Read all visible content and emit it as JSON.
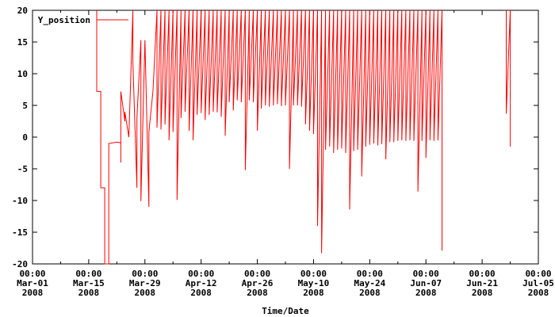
{
  "chart_data": {
    "type": "line",
    "title": "",
    "xlabel": "Time/Date",
    "ylabel": "",
    "x_axis": "date",
    "xlim": [
      "2008-03-01",
      "2008-07-05"
    ],
    "ylim": [
      -20,
      20
    ],
    "y_ticks": [
      -20,
      -15,
      -10,
      -5,
      0,
      5,
      10,
      15,
      20
    ],
    "x_ticks": [
      {
        "date": "2008-03-01",
        "lines": [
          "00:00",
          "Mar-01",
          "2008"
        ]
      },
      {
        "date": "2008-03-15",
        "lines": [
          "00:00",
          "Mar-15",
          "2008"
        ]
      },
      {
        "date": "2008-03-29",
        "lines": [
          "00:00",
          "Mar-29",
          "2008"
        ]
      },
      {
        "date": "2008-04-12",
        "lines": [
          "00:00",
          "Apr-12",
          "2008"
        ]
      },
      {
        "date": "2008-04-26",
        "lines": [
          "00:00",
          "Apr-26",
          "2008"
        ]
      },
      {
        "date": "2008-05-10",
        "lines": [
          "00:00",
          "May-10",
          "2008"
        ]
      },
      {
        "date": "2008-05-24",
        "lines": [
          "00:00",
          "May-24",
          "2008"
        ]
      },
      {
        "date": "2008-06-07",
        "lines": [
          "00:00",
          "Jun-07",
          "2008"
        ]
      },
      {
        "date": "2008-06-21",
        "lines": [
          "00:00",
          "Jun-21",
          "2008"
        ]
      },
      {
        "date": "2008-07-05",
        "lines": [
          "00:00",
          "Jul-05",
          "2008"
        ]
      }
    ],
    "grid": false,
    "legend_position": "top-left",
    "series": [
      {
        "name": "Y_position",
        "color": "#ff0000",
        "points": [
          [
            "2008-03-17",
            20
          ],
          [
            "2008-03-17",
            7.2
          ],
          [
            "2008-03-18",
            7.2
          ],
          [
            "2008-03-18",
            -8
          ],
          [
            "2008-03-19",
            -8
          ],
          [
            "2008-03-19",
            -20
          ],
          [
            "2008-03-20",
            -20
          ],
          [
            "2008-03-20",
            -1
          ],
          [
            "2008-03-22",
            -0.8
          ],
          [
            "2008-03-23",
            -0.9
          ],
          [
            "2008-03-23",
            -4
          ],
          [
            "2008-03-23",
            7.2
          ],
          [
            "2008-03-24",
            2.5
          ],
          [
            "2008-03-24",
            4
          ],
          [
            "2008-03-25",
            0
          ],
          [
            "2008-03-26",
            20
          ],
          [
            "2008-03-26",
            11.8
          ],
          [
            "2008-03-27",
            -8
          ],
          [
            "2008-03-27",
            3
          ],
          [
            "2008-03-28",
            15.3
          ],
          [
            "2008-03-28",
            -10.1
          ],
          [
            "2008-03-29",
            15.3
          ],
          [
            "2008-03-30",
            -11
          ],
          [
            "2008-03-30",
            0.8
          ],
          [
            "2008-03-31",
            7.2
          ],
          [
            "2008-04-01",
            20
          ],
          [
            "2008-04-01",
            1.5
          ],
          [
            "2008-04-02",
            20
          ],
          [
            "2008-04-02",
            1.2
          ],
          [
            "2008-04-03",
            20
          ],
          [
            "2008-04-03",
            2
          ],
          [
            "2008-04-04",
            20
          ],
          [
            "2008-04-04",
            -0.5
          ],
          [
            "2008-04-05",
            20
          ],
          [
            "2008-04-05",
            0.8
          ],
          [
            "2008-04-06",
            20
          ],
          [
            "2008-04-06",
            -9.9
          ],
          [
            "2008-04-07",
            20
          ],
          [
            "2008-04-07",
            3
          ],
          [
            "2008-04-08",
            20
          ],
          [
            "2008-04-08",
            4
          ],
          [
            "2008-04-09",
            20
          ],
          [
            "2008-04-09",
            1
          ],
          [
            "2008-04-10",
            20
          ],
          [
            "2008-04-10",
            -0.5
          ],
          [
            "2008-04-11",
            20
          ],
          [
            "2008-04-11",
            3.5
          ],
          [
            "2008-04-12",
            20
          ],
          [
            "2008-04-12",
            3.8
          ],
          [
            "2008-04-13",
            20
          ],
          [
            "2008-04-13",
            2.7
          ],
          [
            "2008-04-14",
            20
          ],
          [
            "2008-04-14",
            3.5
          ],
          [
            "2008-04-15",
            20
          ],
          [
            "2008-04-15",
            4
          ],
          [
            "2008-04-16",
            20
          ],
          [
            "2008-04-16",
            3.9
          ],
          [
            "2008-04-17",
            20
          ],
          [
            "2008-04-17",
            3.2
          ],
          [
            "2008-04-18",
            20
          ],
          [
            "2008-04-18",
            0.2
          ],
          [
            "2008-04-19",
            20
          ],
          [
            "2008-04-19",
            5.5
          ],
          [
            "2008-04-20",
            20
          ],
          [
            "2008-04-20",
            4.2
          ],
          [
            "2008-04-21",
            20
          ],
          [
            "2008-04-21",
            5.8
          ],
          [
            "2008-04-22",
            20
          ],
          [
            "2008-04-22",
            5.5
          ],
          [
            "2008-04-23",
            20
          ],
          [
            "2008-04-23",
            -5.2
          ],
          [
            "2008-04-24",
            20
          ],
          [
            "2008-04-24",
            5.8
          ],
          [
            "2008-04-25",
            20
          ],
          [
            "2008-04-25",
            5.5
          ],
          [
            "2008-04-26",
            20
          ],
          [
            "2008-04-26",
            1
          ],
          [
            "2008-04-27",
            20
          ],
          [
            "2008-04-27",
            4.5
          ],
          [
            "2008-04-28",
            20
          ],
          [
            "2008-04-28",
            5
          ],
          [
            "2008-04-29",
            20
          ],
          [
            "2008-04-29",
            4.8
          ],
          [
            "2008-04-30",
            20
          ],
          [
            "2008-04-30",
            5
          ],
          [
            "2008-05-01",
            20
          ],
          [
            "2008-05-01",
            5.2
          ],
          [
            "2008-05-02",
            20
          ],
          [
            "2008-05-02",
            4.9
          ],
          [
            "2008-05-03",
            20
          ],
          [
            "2008-05-03",
            5
          ],
          [
            "2008-05-04",
            20
          ],
          [
            "2008-05-04",
            -5
          ],
          [
            "2008-05-05",
            20
          ],
          [
            "2008-05-05",
            5
          ],
          [
            "2008-05-06",
            20
          ],
          [
            "2008-05-06",
            5
          ],
          [
            "2008-05-07",
            20
          ],
          [
            "2008-05-07",
            4.8
          ],
          [
            "2008-05-08",
            20
          ],
          [
            "2008-05-08",
            2
          ],
          [
            "2008-05-09",
            20
          ],
          [
            "2008-05-09",
            1
          ],
          [
            "2008-05-10",
            20
          ],
          [
            "2008-05-10",
            0.5
          ],
          [
            "2008-05-11",
            20
          ],
          [
            "2008-05-11",
            -14
          ],
          [
            "2008-05-12",
            20
          ],
          [
            "2008-05-12",
            -18.3
          ],
          [
            "2008-05-13",
            20
          ],
          [
            "2008-05-13",
            -2
          ],
          [
            "2008-05-14",
            20
          ],
          [
            "2008-05-14",
            -1.5
          ],
          [
            "2008-05-15",
            20
          ],
          [
            "2008-05-15",
            -2.5
          ],
          [
            "2008-05-16",
            20
          ],
          [
            "2008-05-16",
            -2
          ],
          [
            "2008-05-17",
            20
          ],
          [
            "2008-05-17",
            -1.8
          ],
          [
            "2008-05-18",
            20
          ],
          [
            "2008-05-18",
            -2.5
          ],
          [
            "2008-05-19",
            20
          ],
          [
            "2008-05-19",
            -11.4
          ],
          [
            "2008-05-20",
            20
          ],
          [
            "2008-05-20",
            -2.2
          ],
          [
            "2008-05-21",
            20
          ],
          [
            "2008-05-21",
            -2
          ],
          [
            "2008-05-22",
            20
          ],
          [
            "2008-05-22",
            -6.2
          ],
          [
            "2008-05-23",
            20
          ],
          [
            "2008-05-23",
            -1.5
          ],
          [
            "2008-05-24",
            20
          ],
          [
            "2008-05-24",
            -1.2
          ],
          [
            "2008-05-25",
            20
          ],
          [
            "2008-05-25",
            -1
          ],
          [
            "2008-05-26",
            20
          ],
          [
            "2008-05-26",
            -1.3
          ],
          [
            "2008-05-27",
            20
          ],
          [
            "2008-05-27",
            -1.1
          ],
          [
            "2008-05-28",
            20
          ],
          [
            "2008-05-28",
            -3.5
          ],
          [
            "2008-05-29",
            20
          ],
          [
            "2008-05-29",
            -0.8
          ],
          [
            "2008-05-30",
            20
          ],
          [
            "2008-05-30",
            -0.8
          ],
          [
            "2008-05-31",
            20
          ],
          [
            "2008-05-31",
            -0.6
          ],
          [
            "2008-06-01",
            20
          ],
          [
            "2008-06-01",
            -0.5
          ],
          [
            "2008-06-02",
            20
          ],
          [
            "2008-06-02",
            -0.6
          ],
          [
            "2008-06-03",
            20
          ],
          [
            "2008-06-03",
            -0.5
          ],
          [
            "2008-06-04",
            20
          ],
          [
            "2008-06-04",
            -0.6
          ],
          [
            "2008-06-05",
            20
          ],
          [
            "2008-06-05",
            -8.6
          ],
          [
            "2008-06-06",
            20
          ],
          [
            "2008-06-06",
            -0.6
          ],
          [
            "2008-06-07",
            20
          ],
          [
            "2008-06-07",
            -3.3
          ],
          [
            "2008-06-08",
            20
          ],
          [
            "2008-06-08",
            -0.5
          ],
          [
            "2008-06-09",
            20
          ],
          [
            "2008-06-09",
            -0.6
          ],
          [
            "2008-06-10",
            20
          ],
          [
            "2008-06-10",
            -0.5
          ],
          [
            "2008-06-11",
            20
          ],
          [
            "2008-06-11",
            -17.9
          ],
          [
            "2008-06-11",
            -8.1
          ],
          [
            "2008-06-11",
            -0.5
          ]
        ]
      },
      {
        "name": "",
        "color": "#ff0000",
        "points": [
          [
            "2008-06-27",
            20
          ],
          [
            "2008-06-27",
            3.7
          ],
          [
            "2008-06-28",
            20
          ],
          [
            "2008-06-28",
            -1.5
          ]
        ]
      }
    ]
  }
}
